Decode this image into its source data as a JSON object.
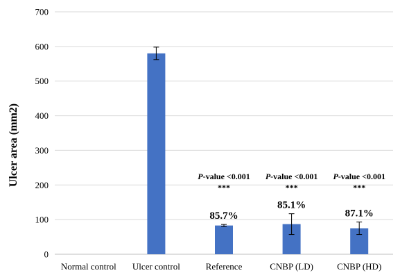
{
  "chart_data": {
    "type": "bar",
    "title": "",
    "xlabel": "",
    "ylabel": "Ulcer area (mm2)",
    "ylim": [
      0,
      700
    ],
    "y_ticks": [
      "0",
      "100",
      "200",
      "300",
      "400",
      "500",
      "600",
      "700"
    ],
    "grid": true,
    "legend": "none",
    "categories": [
      "Normal control",
      "Ulcer control",
      "Reference",
      "CNBP (LD)",
      "CNBP (HD)"
    ],
    "series": [
      {
        "values": [
          0,
          580,
          83,
          87,
          75
        ],
        "errors": [
          0,
          18,
          3,
          30,
          18
        ],
        "color": "#4472C4"
      }
    ],
    "annotations": [
      {
        "category": "Reference",
        "percent": "85.7%",
        "pvalue_prefix": "P",
        "pvalue_text": "-value <0.001",
        "stars": "***"
      },
      {
        "category": "CNBP (LD)",
        "percent": "85.1%",
        "pvalue_prefix": "P",
        "pvalue_text": "-value <0.001",
        "stars": "***"
      },
      {
        "category": "CNBP (HD)",
        "percent": "87.1%",
        "pvalue_prefix": "P",
        "pvalue_text": "-value <0.001",
        "stars": "***"
      }
    ]
  }
}
